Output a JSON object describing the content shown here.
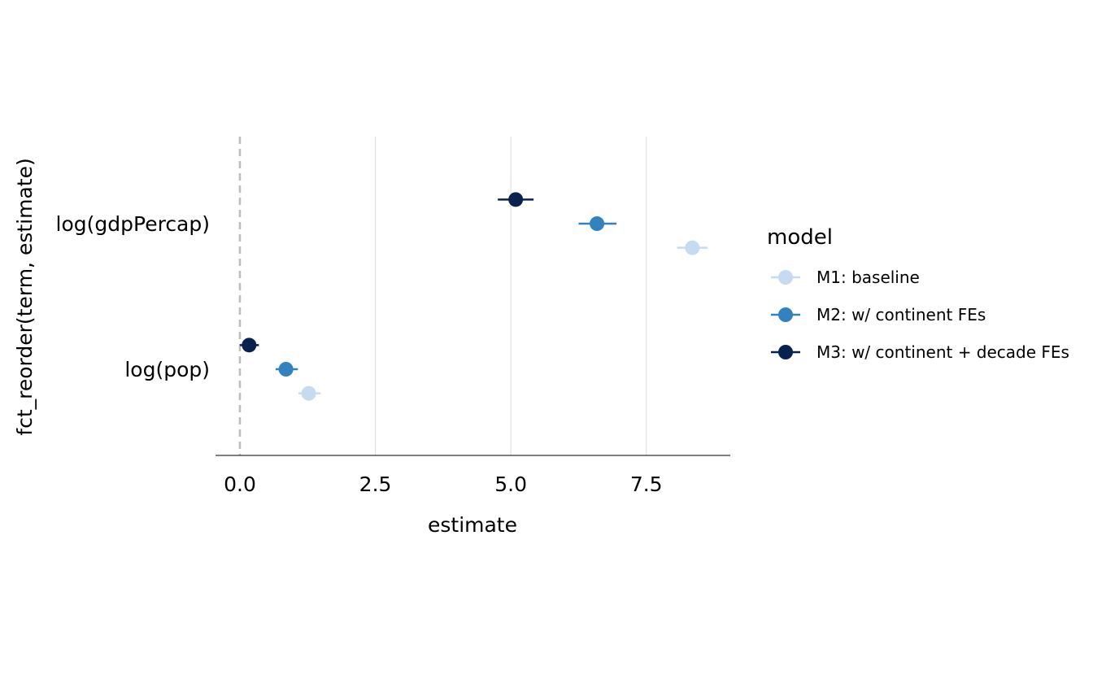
{
  "chart_data": {
    "type": "scatter",
    "subtype": "coefficient-plot",
    "title": "",
    "xlabel": "estimate",
    "ylabel": "fct_reorder(term, estimate)",
    "xlim": [
      -0.45,
      9.05
    ],
    "x_ticks": [
      0.0,
      2.5,
      5.0,
      7.5
    ],
    "x_tick_labels": [
      "0.0",
      "2.5",
      "5.0",
      "7.5"
    ],
    "categories": [
      "log(pop)",
      "log(gdpPercap)"
    ],
    "grid": "vertical major lines only",
    "reference_line": {
      "x": 0,
      "style": "dashed",
      "color": "#bdbdbd"
    },
    "legend": {
      "title": "model",
      "position": "right"
    },
    "series": [
      {
        "name": "M1: baseline",
        "color": "#c6dbef",
        "points": [
          {
            "term": "log(gdpPercap)",
            "estimate": 8.35,
            "conf_low": 8.07,
            "conf_high": 8.63
          },
          {
            "term": "log(pop)",
            "estimate": 1.27,
            "conf_low": 1.08,
            "conf_high": 1.49
          }
        ]
      },
      {
        "name": "M2: w/ continent FEs",
        "color": "#3182bd",
        "points": [
          {
            "term": "log(gdpPercap)",
            "estimate": 6.59,
            "conf_low": 6.25,
            "conf_high": 6.95
          },
          {
            "term": "log(pop)",
            "estimate": 0.85,
            "conf_low": 0.66,
            "conf_high": 1.07
          }
        ]
      },
      {
        "name": "M3: w/ continent + decade FEs",
        "color": "#08214f",
        "points": [
          {
            "term": "log(gdpPercap)",
            "estimate": 5.09,
            "conf_low": 4.76,
            "conf_high": 5.42
          },
          {
            "term": "log(pop)",
            "estimate": 0.17,
            "conf_low": 0.0,
            "conf_high": 0.35
          }
        ]
      }
    ]
  }
}
